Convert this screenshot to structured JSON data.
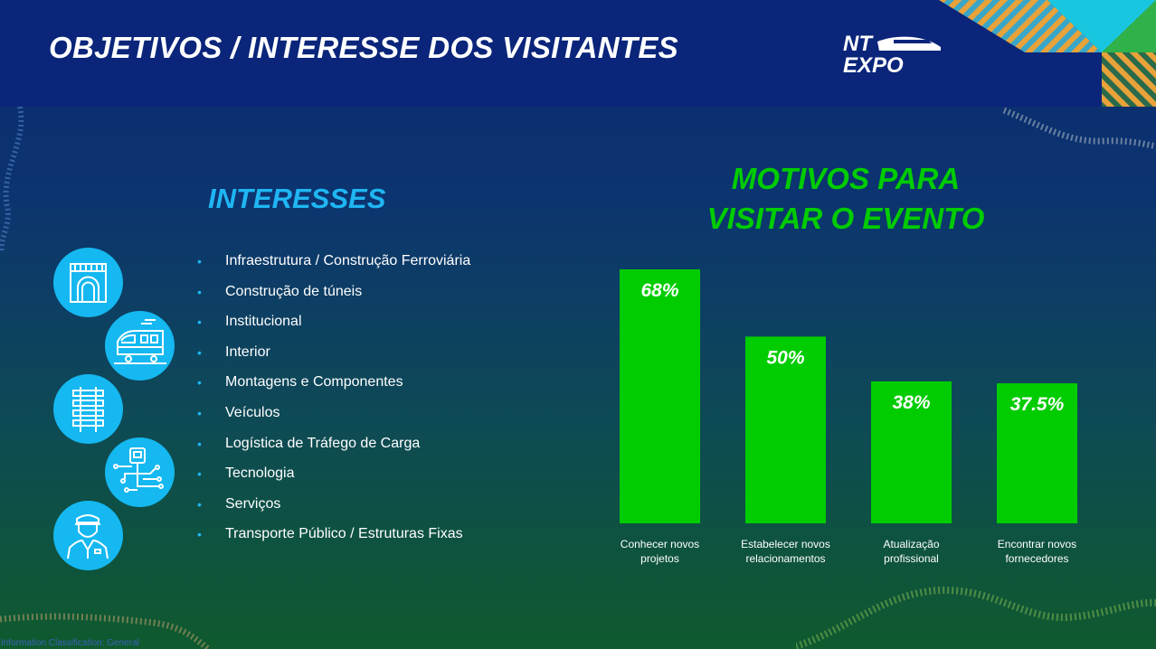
{
  "header": {
    "title": "OBJETIVOS / INTERESSE DOS VISITANTES",
    "logo_line1": "NT",
    "logo_line2": "EXPO"
  },
  "interests": {
    "title": "INTERESSES",
    "items": [
      "Infraestrutura / Construção Ferroviária",
      "Construção de túneis",
      "Institucional",
      "Interior",
      "Montagens e Componentes",
      "Veículos",
      "Logística de Tráfego de Carga",
      "Tecnologia",
      "Serviços",
      "Transporte Público / Estruturas Fixas"
    ],
    "icons": [
      "tunnel-icon",
      "train-icon",
      "rail-track-icon",
      "rail-tech-icon",
      "train-conductor-icon"
    ]
  },
  "chart_data": {
    "type": "bar",
    "title_line1": "MOTIVOS PARA",
    "title_line2": "VISITAR O EVENTO",
    "categories": [
      [
        "Conhecer novos",
        "projetos"
      ],
      [
        "Estabelecer novos",
        "relacionamentos"
      ],
      [
        "Atualização",
        "profissional"
      ],
      [
        "Encontrar novos",
        "fornecedores"
      ]
    ],
    "values": [
      68,
      50,
      38,
      37.5
    ],
    "data_labels": [
      "68%",
      "50%",
      "38%",
      "37.5%"
    ],
    "ylim": [
      0,
      68
    ],
    "bar_color": "#00cc00",
    "label_color": "#ffffff",
    "category_label_color": "#ffffff",
    "grid": false,
    "legend": "none"
  },
  "footer": {
    "classification": "Information Classification: General"
  },
  "colors": {
    "accent_blue": "#1fb6f2",
    "accent_green": "#00cc00",
    "header_bg": "#0a257a"
  }
}
